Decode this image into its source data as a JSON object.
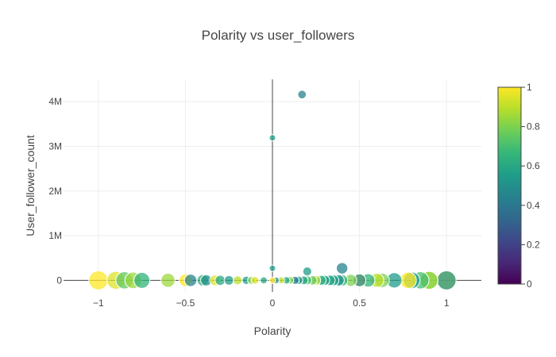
{
  "chart_data": {
    "type": "scatter",
    "title": "Polarity vs user_followers",
    "xlabel": "Polarity",
    "ylabel": "User_follower_count",
    "xlim": [
      -1.2,
      1.2
    ],
    "ylim": [
      -260000,
      4500000
    ],
    "x_ticks": [
      -1,
      -0.5,
      0,
      0.5,
      1
    ],
    "x_tick_labels": [
      "−1",
      "−0.5",
      "0",
      "0.5",
      "1"
    ],
    "y_ticks": [
      0,
      1000000,
      2000000,
      3000000,
      4000000
    ],
    "y_tick_labels": [
      "0",
      "1M",
      "2M",
      "3M",
      "4M"
    ],
    "grid": true,
    "colorbar": {
      "colorscale": "viridis",
      "min": 0,
      "max": 1,
      "ticks": [
        0,
        0.2,
        0.4,
        0.6,
        0.8,
        1
      ],
      "tick_labels": [
        "0",
        "0.2",
        "0.4",
        "0.6",
        "0.8",
        "1"
      ]
    },
    "marker_color_variable": "subjectivity (0–1), marker size proportional to |polarity|",
    "points": [
      {
        "x": 0.17,
        "y": 4160000,
        "c": 0.45
      },
      {
        "x": 0.0,
        "y": 3190000,
        "c": 0.55
      },
      {
        "x": 0.0,
        "y": 270000,
        "c": 0.55
      },
      {
        "x": 0.4,
        "y": 270000,
        "c": 0.45
      },
      {
        "x": 0.2,
        "y": 200000,
        "c": 0.55
      },
      {
        "x": -1.0,
        "y": 0,
        "c": 1.0
      },
      {
        "x": -0.9,
        "y": 0,
        "c": 0.95
      },
      {
        "x": -0.85,
        "y": 0,
        "c": 0.75
      },
      {
        "x": -0.8,
        "y": 0,
        "c": 0.85
      },
      {
        "x": -0.75,
        "y": 0,
        "c": 0.65
      },
      {
        "x": -0.6,
        "y": 0,
        "c": 0.85
      },
      {
        "x": -0.5,
        "y": 0,
        "c": 1.0
      },
      {
        "x": -0.47,
        "y": 0,
        "c": 0.45
      },
      {
        "x": -0.4,
        "y": 0,
        "c": 0.65
      },
      {
        "x": -0.38,
        "y": 0,
        "c": 0.5
      },
      {
        "x": -0.33,
        "y": 0,
        "c": 0.95
      },
      {
        "x": -0.3,
        "y": 0,
        "c": 0.6
      },
      {
        "x": -0.25,
        "y": 0,
        "c": 0.55
      },
      {
        "x": -0.2,
        "y": 0,
        "c": 0.9
      },
      {
        "x": -0.15,
        "y": 0,
        "c": 0.55
      },
      {
        "x": -0.12,
        "y": 0,
        "c": 0.8
      },
      {
        "x": -0.1,
        "y": 0,
        "c": 0.95
      },
      {
        "x": -0.05,
        "y": 0,
        "c": 0.6
      },
      {
        "x": 0.0,
        "y": 0,
        "c": 1.0
      },
      {
        "x": 0.02,
        "y": 0,
        "c": 0.5
      },
      {
        "x": 0.05,
        "y": 0,
        "c": 0.9
      },
      {
        "x": 0.08,
        "y": 0,
        "c": 0.6
      },
      {
        "x": 0.1,
        "y": 0,
        "c": 0.8
      },
      {
        "x": 0.13,
        "y": 0,
        "c": 0.45
      },
      {
        "x": 0.15,
        "y": 0,
        "c": 0.5
      },
      {
        "x": 0.18,
        "y": 0,
        "c": 0.6
      },
      {
        "x": 0.2,
        "y": 0,
        "c": 0.7
      },
      {
        "x": 0.23,
        "y": 0,
        "c": 0.75
      },
      {
        "x": 0.25,
        "y": 0,
        "c": 0.9
      },
      {
        "x": 0.28,
        "y": 0,
        "c": 0.65
      },
      {
        "x": 0.3,
        "y": 0,
        "c": 0.55
      },
      {
        "x": 0.33,
        "y": 0,
        "c": 0.6
      },
      {
        "x": 0.35,
        "y": 0,
        "c": 0.55
      },
      {
        "x": 0.38,
        "y": 0,
        "c": 0.5
      },
      {
        "x": 0.4,
        "y": 0,
        "c": 0.65
      },
      {
        "x": 0.45,
        "y": 0,
        "c": 0.8
      },
      {
        "x": 0.5,
        "y": 0,
        "c": 1.0
      },
      {
        "x": 0.5,
        "y": 0,
        "c": 0.45
      },
      {
        "x": 0.55,
        "y": 0,
        "c": 0.65
      },
      {
        "x": 0.6,
        "y": 0,
        "c": 0.9
      },
      {
        "x": 0.63,
        "y": 0,
        "c": 0.8
      },
      {
        "x": 0.7,
        "y": 0,
        "c": 0.55
      },
      {
        "x": 0.78,
        "y": 0,
        "c": 1.0
      },
      {
        "x": 0.8,
        "y": 0,
        "c": 0.55
      },
      {
        "x": 0.85,
        "y": 0,
        "c": 0.7
      },
      {
        "x": 0.9,
        "y": 0,
        "c": 0.75
      },
      {
        "x": 0.9,
        "y": 0,
        "c": 0.85
      },
      {
        "x": 1.0,
        "y": 0,
        "c": 1.0
      },
      {
        "x": 1.0,
        "y": 0,
        "c": 0.5
      }
    ]
  }
}
